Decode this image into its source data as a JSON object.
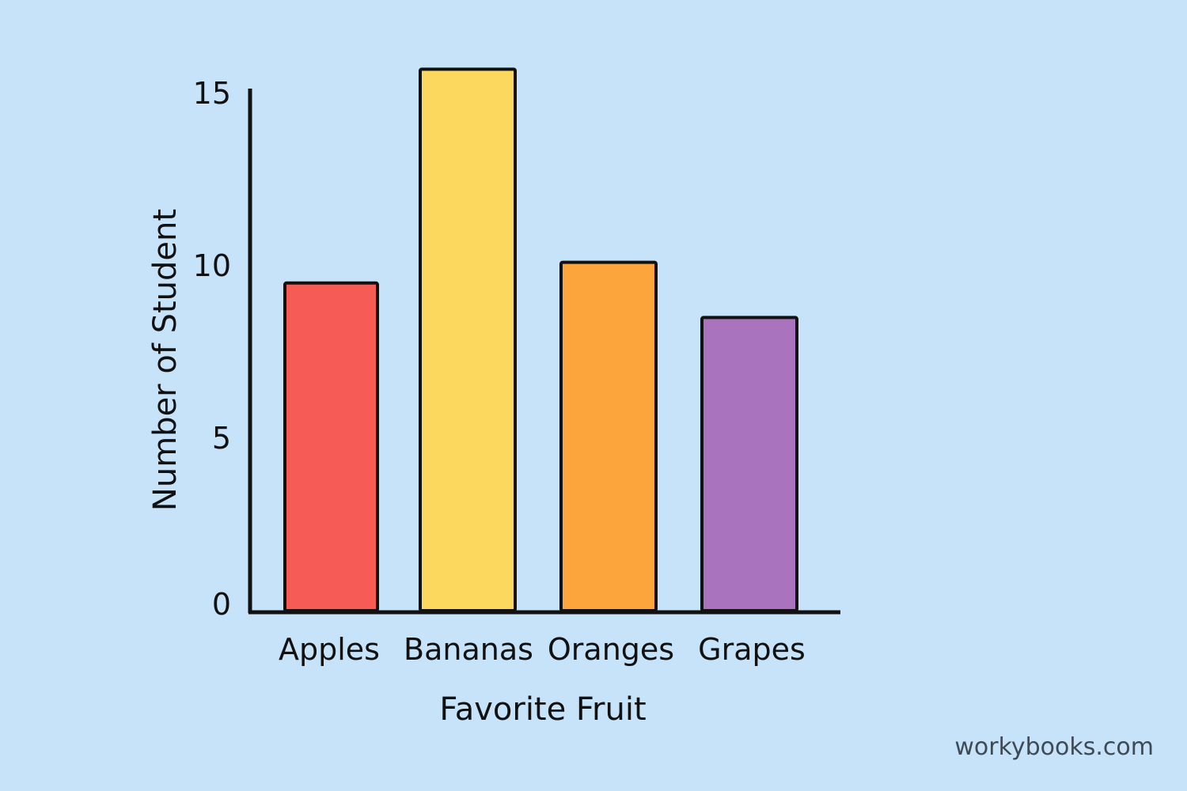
{
  "chart_data": {
    "type": "bar",
    "title": "",
    "xlabel": "Favorite Fruit",
    "ylabel": "Number of Student",
    "categories": [
      "Apples",
      "Bananas",
      "Oranges",
      "Grapes"
    ],
    "values": [
      9.5,
      15.7,
      10.1,
      8.5
    ],
    "colors": [
      "#f65c55",
      "#fdd85e",
      "#fba53c",
      "#aa73bd"
    ],
    "ylim": [
      0,
      15
    ],
    "yticks": [
      0,
      5,
      10,
      15
    ],
    "grid": false,
    "legend": "none"
  },
  "watermark": "workybooks.com"
}
